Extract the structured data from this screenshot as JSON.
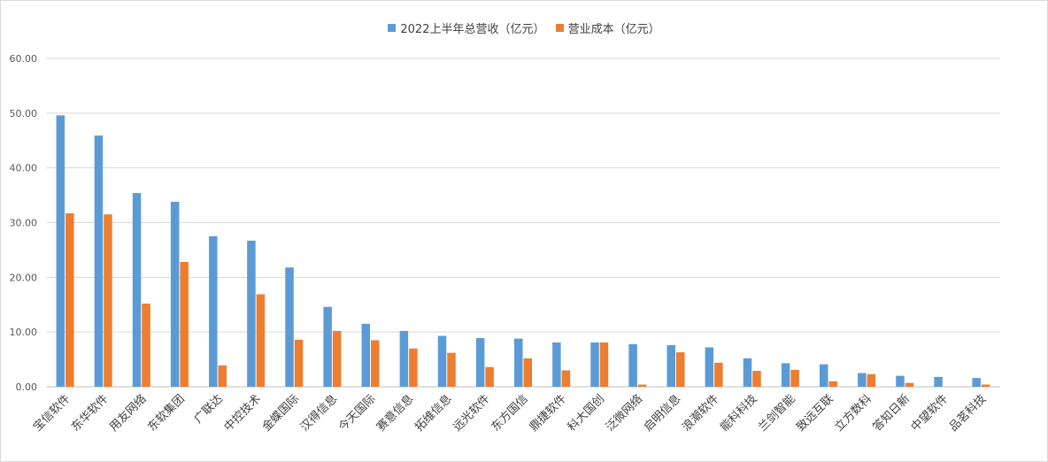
{
  "chart_data": {
    "type": "bar",
    "title": "",
    "xlabel": "",
    "ylabel": "",
    "ylim": [
      0,
      60
    ],
    "yticks": [
      "0.00",
      "10.00",
      "20.00",
      "30.00",
      "40.00",
      "50.00",
      "60.00"
    ],
    "grid": true,
    "legend_position": "top-center",
    "categories": [
      "宝信软件",
      "东华软件",
      "用友网络",
      "东软集团",
      "广联达",
      "中控技术",
      "金蝶国际",
      "汉得信息",
      "今天国际",
      "赛意信息",
      "拓维信息",
      "远光软件",
      "东方国信",
      "鼎捷软件",
      "科大国创",
      "泛微网络",
      "启明信息",
      "浪潮软件",
      "能科科技",
      "兰剑智能",
      "致远互联",
      "立方数科",
      "答知日新",
      "中望软件",
      "品茗科技"
    ],
    "series": [
      {
        "name": "2022上半年总营收（亿元）",
        "color": "#5b9bd5",
        "values": [
          49.6,
          45.9,
          35.4,
          33.8,
          27.5,
          26.7,
          21.8,
          14.6,
          11.5,
          10.2,
          9.3,
          8.9,
          8.8,
          8.1,
          8.1,
          7.8,
          7.6,
          7.2,
          5.2,
          4.3,
          4.1,
          2.5,
          2.0,
          1.8,
          1.6
        ]
      },
      {
        "name": "营业成本（亿元）",
        "color": "#ed7d31",
        "values": [
          31.7,
          31.5,
          15.2,
          22.8,
          3.9,
          16.9,
          8.6,
          10.2,
          8.5,
          7.0,
          6.2,
          3.6,
          5.2,
          3.0,
          8.1,
          0.4,
          6.3,
          4.4,
          2.9,
          3.1,
          1.0,
          2.3,
          0.7,
          0.0,
          0.4
        ]
      }
    ]
  }
}
